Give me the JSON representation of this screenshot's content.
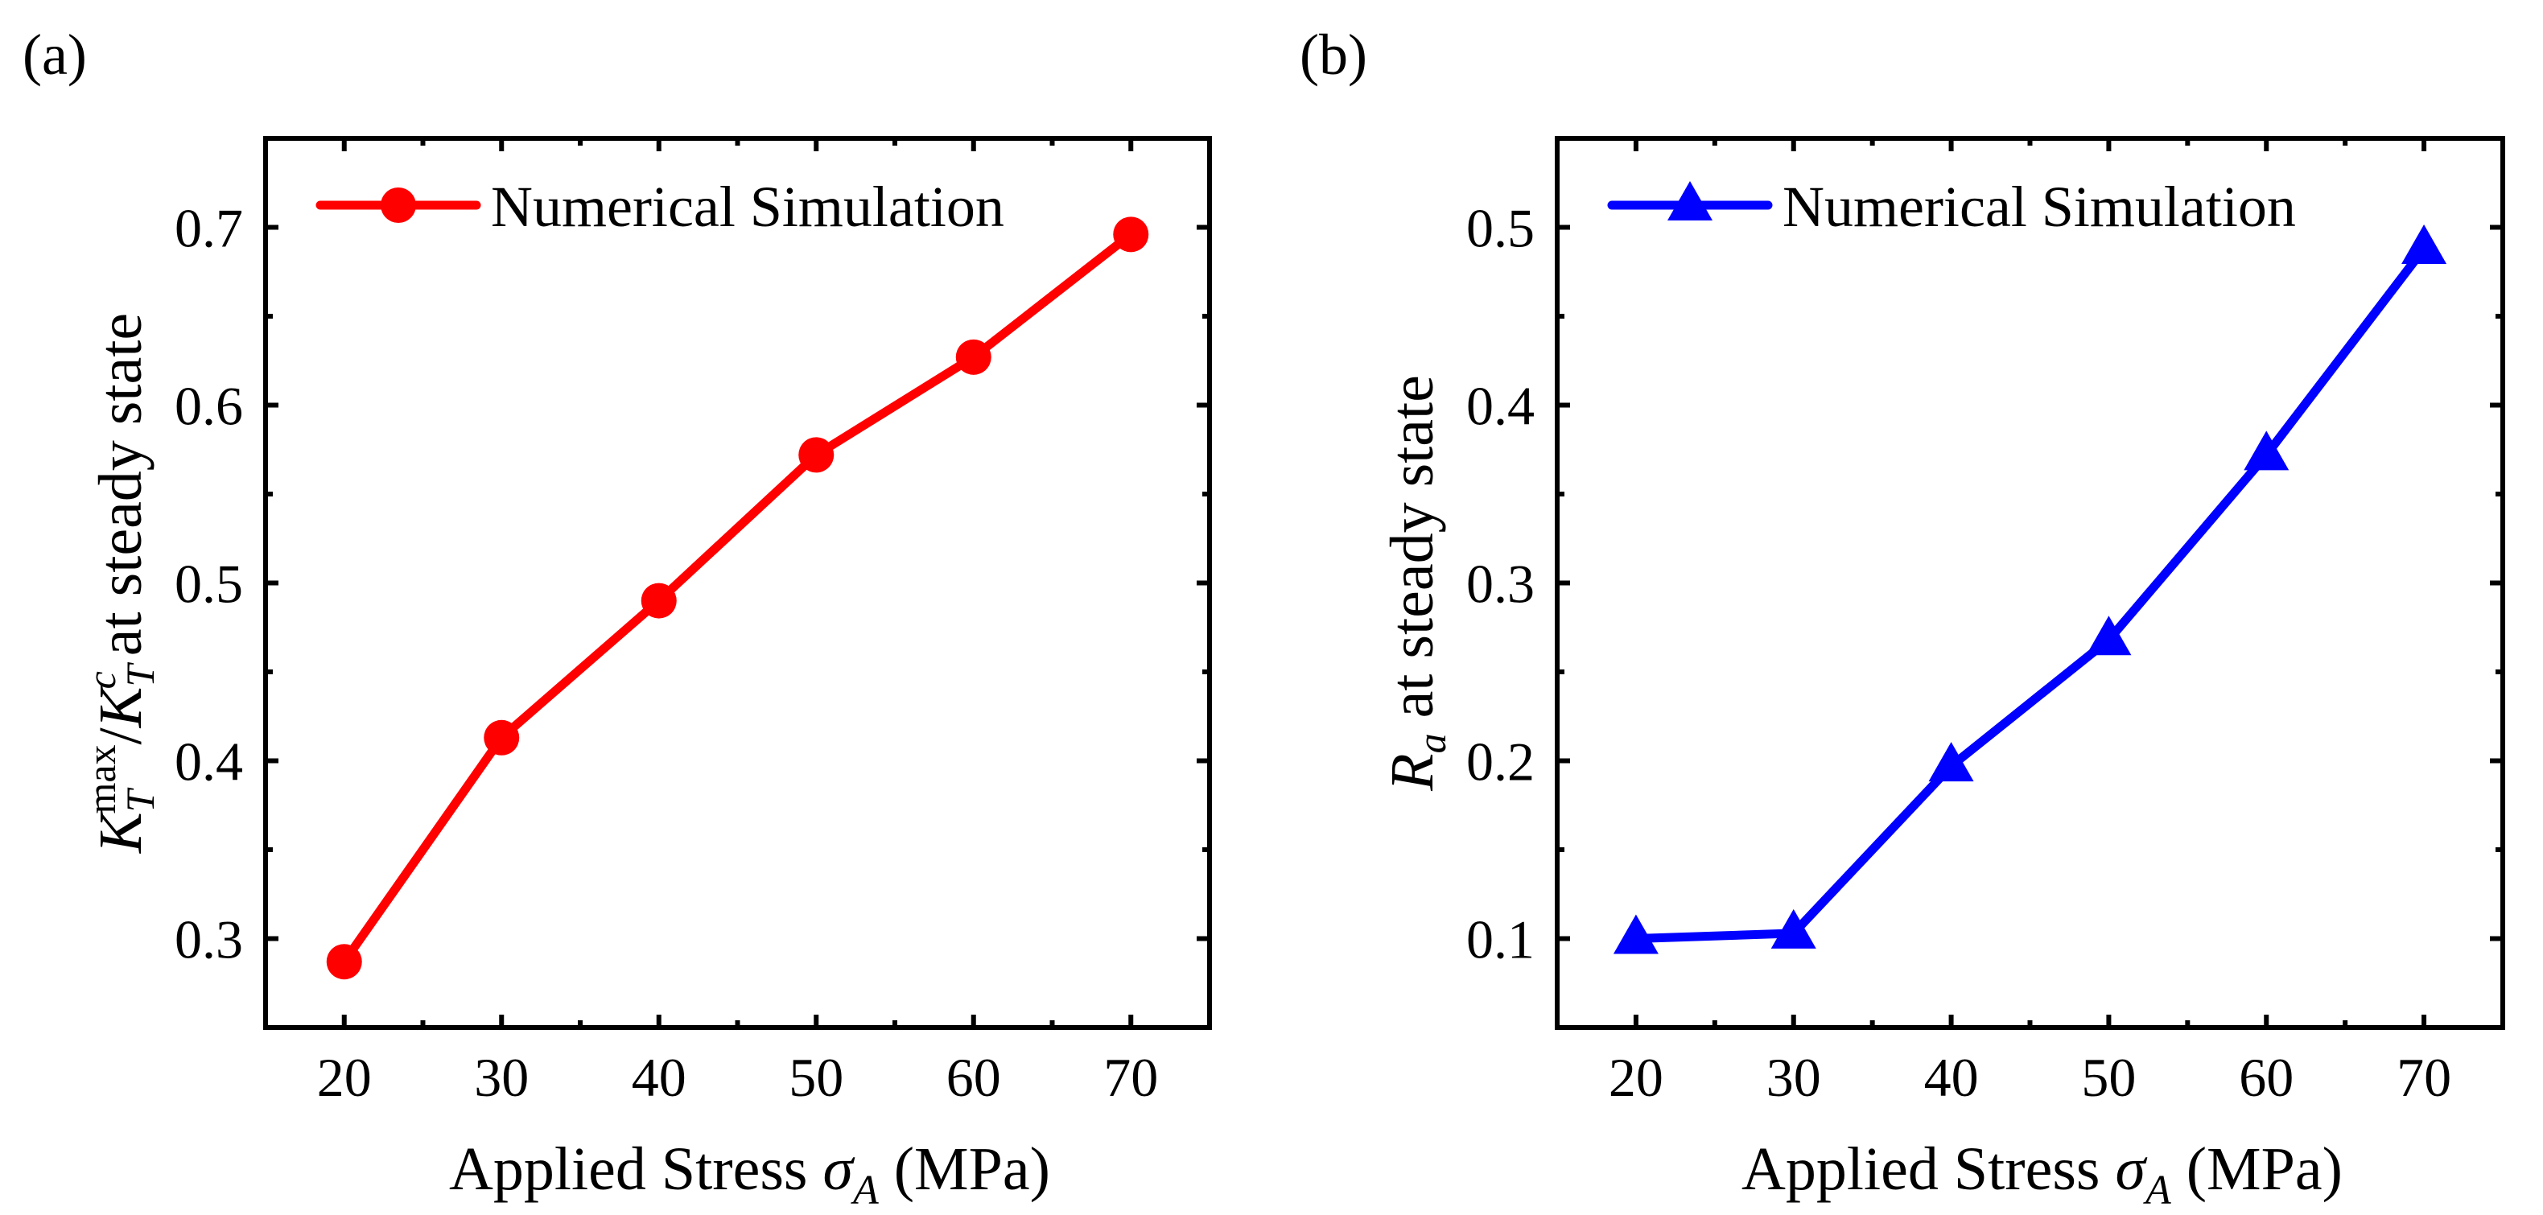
{
  "chart_data": [
    {
      "type": "line",
      "panel_label": "(a)",
      "x": [
        20,
        30,
        40,
        50,
        60,
        70
      ],
      "series": [
        {
          "name": "Numerical Simulation",
          "values": [
            0.287,
            0.413,
            0.49,
            0.572,
            0.627,
            0.696
          ],
          "color": "#ff0000",
          "marker": "circle"
        }
      ],
      "xlabel": {
        "text": "Applied Stress ",
        "symbol": "σ",
        "sub": "A",
        "unit": " (MPa)"
      },
      "ylabel": {
        "k1": "K",
        "t1": "T",
        "sup1": "max",
        "slash": "/",
        "k2": "K",
        "t2": "T",
        "sup2": "c",
        "rest": " at steady state"
      },
      "xlim": [
        15,
        75
      ],
      "ylim": [
        0.25,
        0.75
      ],
      "xticks": [
        "20",
        "30",
        "40",
        "50",
        "60",
        "70"
      ],
      "yticks": [
        "0.3",
        "0.4",
        "0.5",
        "0.6",
        "0.7"
      ],
      "legend_position": "top-left"
    },
    {
      "type": "line",
      "panel_label": "(b)",
      "x": [
        20,
        30,
        40,
        50,
        60,
        70
      ],
      "series": [
        {
          "name": "Numerical Simulation",
          "values": [
            0.1,
            0.103,
            0.197,
            0.268,
            0.372,
            0.488
          ],
          "color": "#0000ff",
          "marker": "triangle"
        }
      ],
      "xlabel": {
        "text": "Applied Stress ",
        "symbol": "σ",
        "sub": "A",
        "unit": " (MPa)"
      },
      "ylabel": {
        "r": "R",
        "sub": "a",
        "rest": " at steady state"
      },
      "xlim": [
        15,
        75
      ],
      "ylim": [
        0.05,
        0.55
      ],
      "xticks": [
        "20",
        "30",
        "40",
        "50",
        "60",
        "70"
      ],
      "yticks": [
        "0.1",
        "0.2",
        "0.3",
        "0.4",
        "0.5"
      ],
      "legend_position": "top-left"
    }
  ]
}
